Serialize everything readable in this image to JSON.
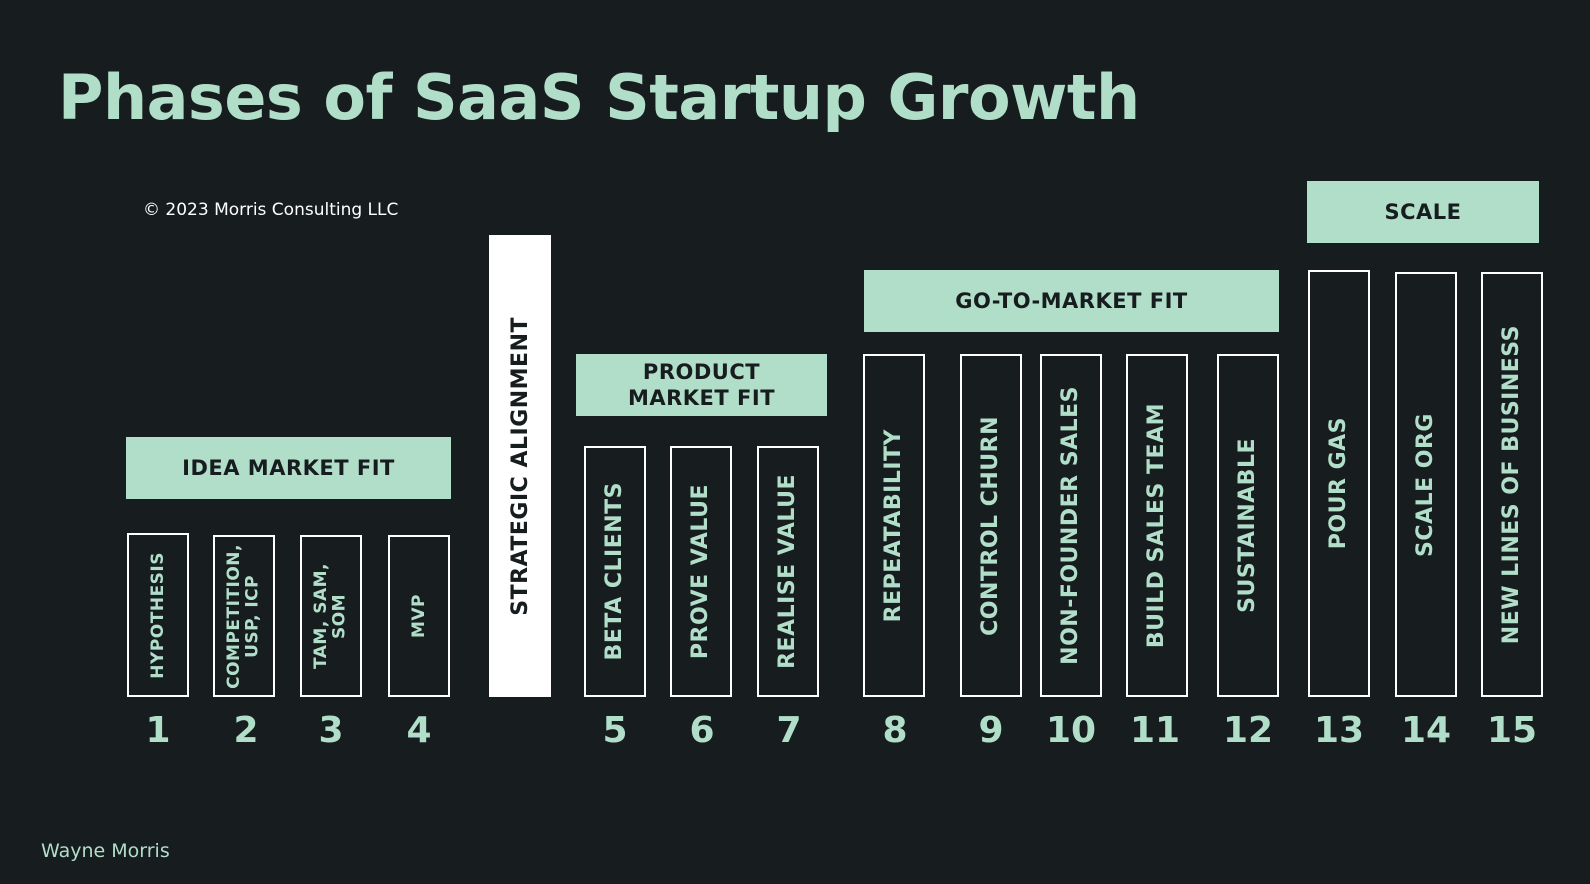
{
  "title": "Phases of SaaS Startup Growth",
  "copyright": "© 2023 Morris Consulting LLC",
  "author": "Wayne Morris",
  "groups": {
    "idea": "IDEA MARKET FIT",
    "product": "PRODUCT\nMARKET FIT",
    "gtm": "GO-TO-MARKET FIT",
    "scale": "SCALE"
  },
  "strategic_alignment": "STRATEGIC ALIGNMENT",
  "steps": [
    {
      "num": "1",
      "label": "HYPOTHESIS"
    },
    {
      "num": "2",
      "label": "COMPETITION,\nUSP, ICP"
    },
    {
      "num": "3",
      "label": "TAM, SAM,\nSOM"
    },
    {
      "num": "4",
      "label": "MVP"
    },
    {
      "num": "5",
      "label": "BETA CLIENTS"
    },
    {
      "num": "6",
      "label": "PROVE VALUE"
    },
    {
      "num": "7",
      "label": "REALISE VALUE"
    },
    {
      "num": "8",
      "label": "REPEATABILITY"
    },
    {
      "num": "9",
      "label": "CONTROL CHURN"
    },
    {
      "num": "10",
      "label": "NON-FOUNDER SALES"
    },
    {
      "num": "11",
      "label": "BUILD SALES TEAM"
    },
    {
      "num": "12",
      "label": "SUSTAINABLE"
    },
    {
      "num": "13",
      "label": "POUR GAS"
    },
    {
      "num": "14",
      "label": "SCALE ORG"
    },
    {
      "num": "15",
      "label": "NEW LINES OF BUSINESS"
    }
  ],
  "colors": {
    "background": "#171c1e",
    "accent": "#b1dec9",
    "outline": "#ffffff"
  }
}
